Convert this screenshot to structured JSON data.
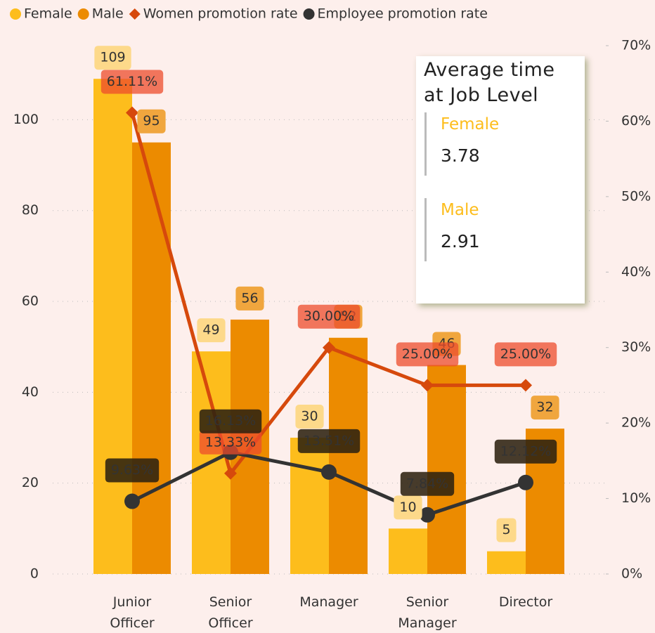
{
  "chart_data": {
    "type": "bar",
    "categories": [
      "Junior Officer",
      "Senior Officer",
      "Manager",
      "Senior Manager",
      "Director"
    ],
    "series": [
      {
        "name": "Female",
        "color": "#fdbd1c",
        "values": [
          109,
          49,
          30,
          10,
          5
        ]
      },
      {
        "name": "Male",
        "color": "#ec8b00",
        "values": [
          95,
          56,
          52,
          46,
          32
        ]
      },
      {
        "name": "Women promotion rate",
        "color": "#d6490c",
        "type": "line",
        "axis": "y2",
        "marker": "diamond",
        "values": [
          61.11,
          13.33,
          30,
          25,
          25
        ],
        "value_labels": [
          "61.11%",
          "13.33%",
          "30.00%",
          "25.00%",
          "25.00%"
        ]
      },
      {
        "name": "Employee promotion rate",
        "color": "#333333",
        "type": "line",
        "axis": "y2",
        "marker": "circle",
        "values": [
          9.63,
          16.13,
          13.51,
          7.84,
          12.12
        ],
        "value_labels": [
          "9.63%",
          "16.13%",
          "13.51%",
          "7.84%",
          "12.12%"
        ]
      }
    ],
    "ylim": [
      0,
      116.3
    ],
    "yticks": [
      0,
      20,
      40,
      60,
      80,
      100
    ],
    "y2lim": [
      0,
      70
    ],
    "y2ticks": [
      {
        "value": 0,
        "label": "0%"
      },
      {
        "value": 10,
        "label": "10%"
      },
      {
        "value": 20,
        "label": "20%"
      },
      {
        "value": 30,
        "label": "30%"
      },
      {
        "value": 40,
        "label": "40%"
      },
      {
        "value": 50,
        "label": "50%"
      },
      {
        "value": 60,
        "label": "60%"
      },
      {
        "value": 70,
        "label": "70%"
      }
    ],
    "grid": true,
    "legend": "top-left"
  },
  "card": {
    "title": "Average time at Job Level",
    "items": [
      {
        "label": "Female",
        "value": "3.78"
      },
      {
        "label": "Male",
        "value": "2.91"
      }
    ]
  }
}
